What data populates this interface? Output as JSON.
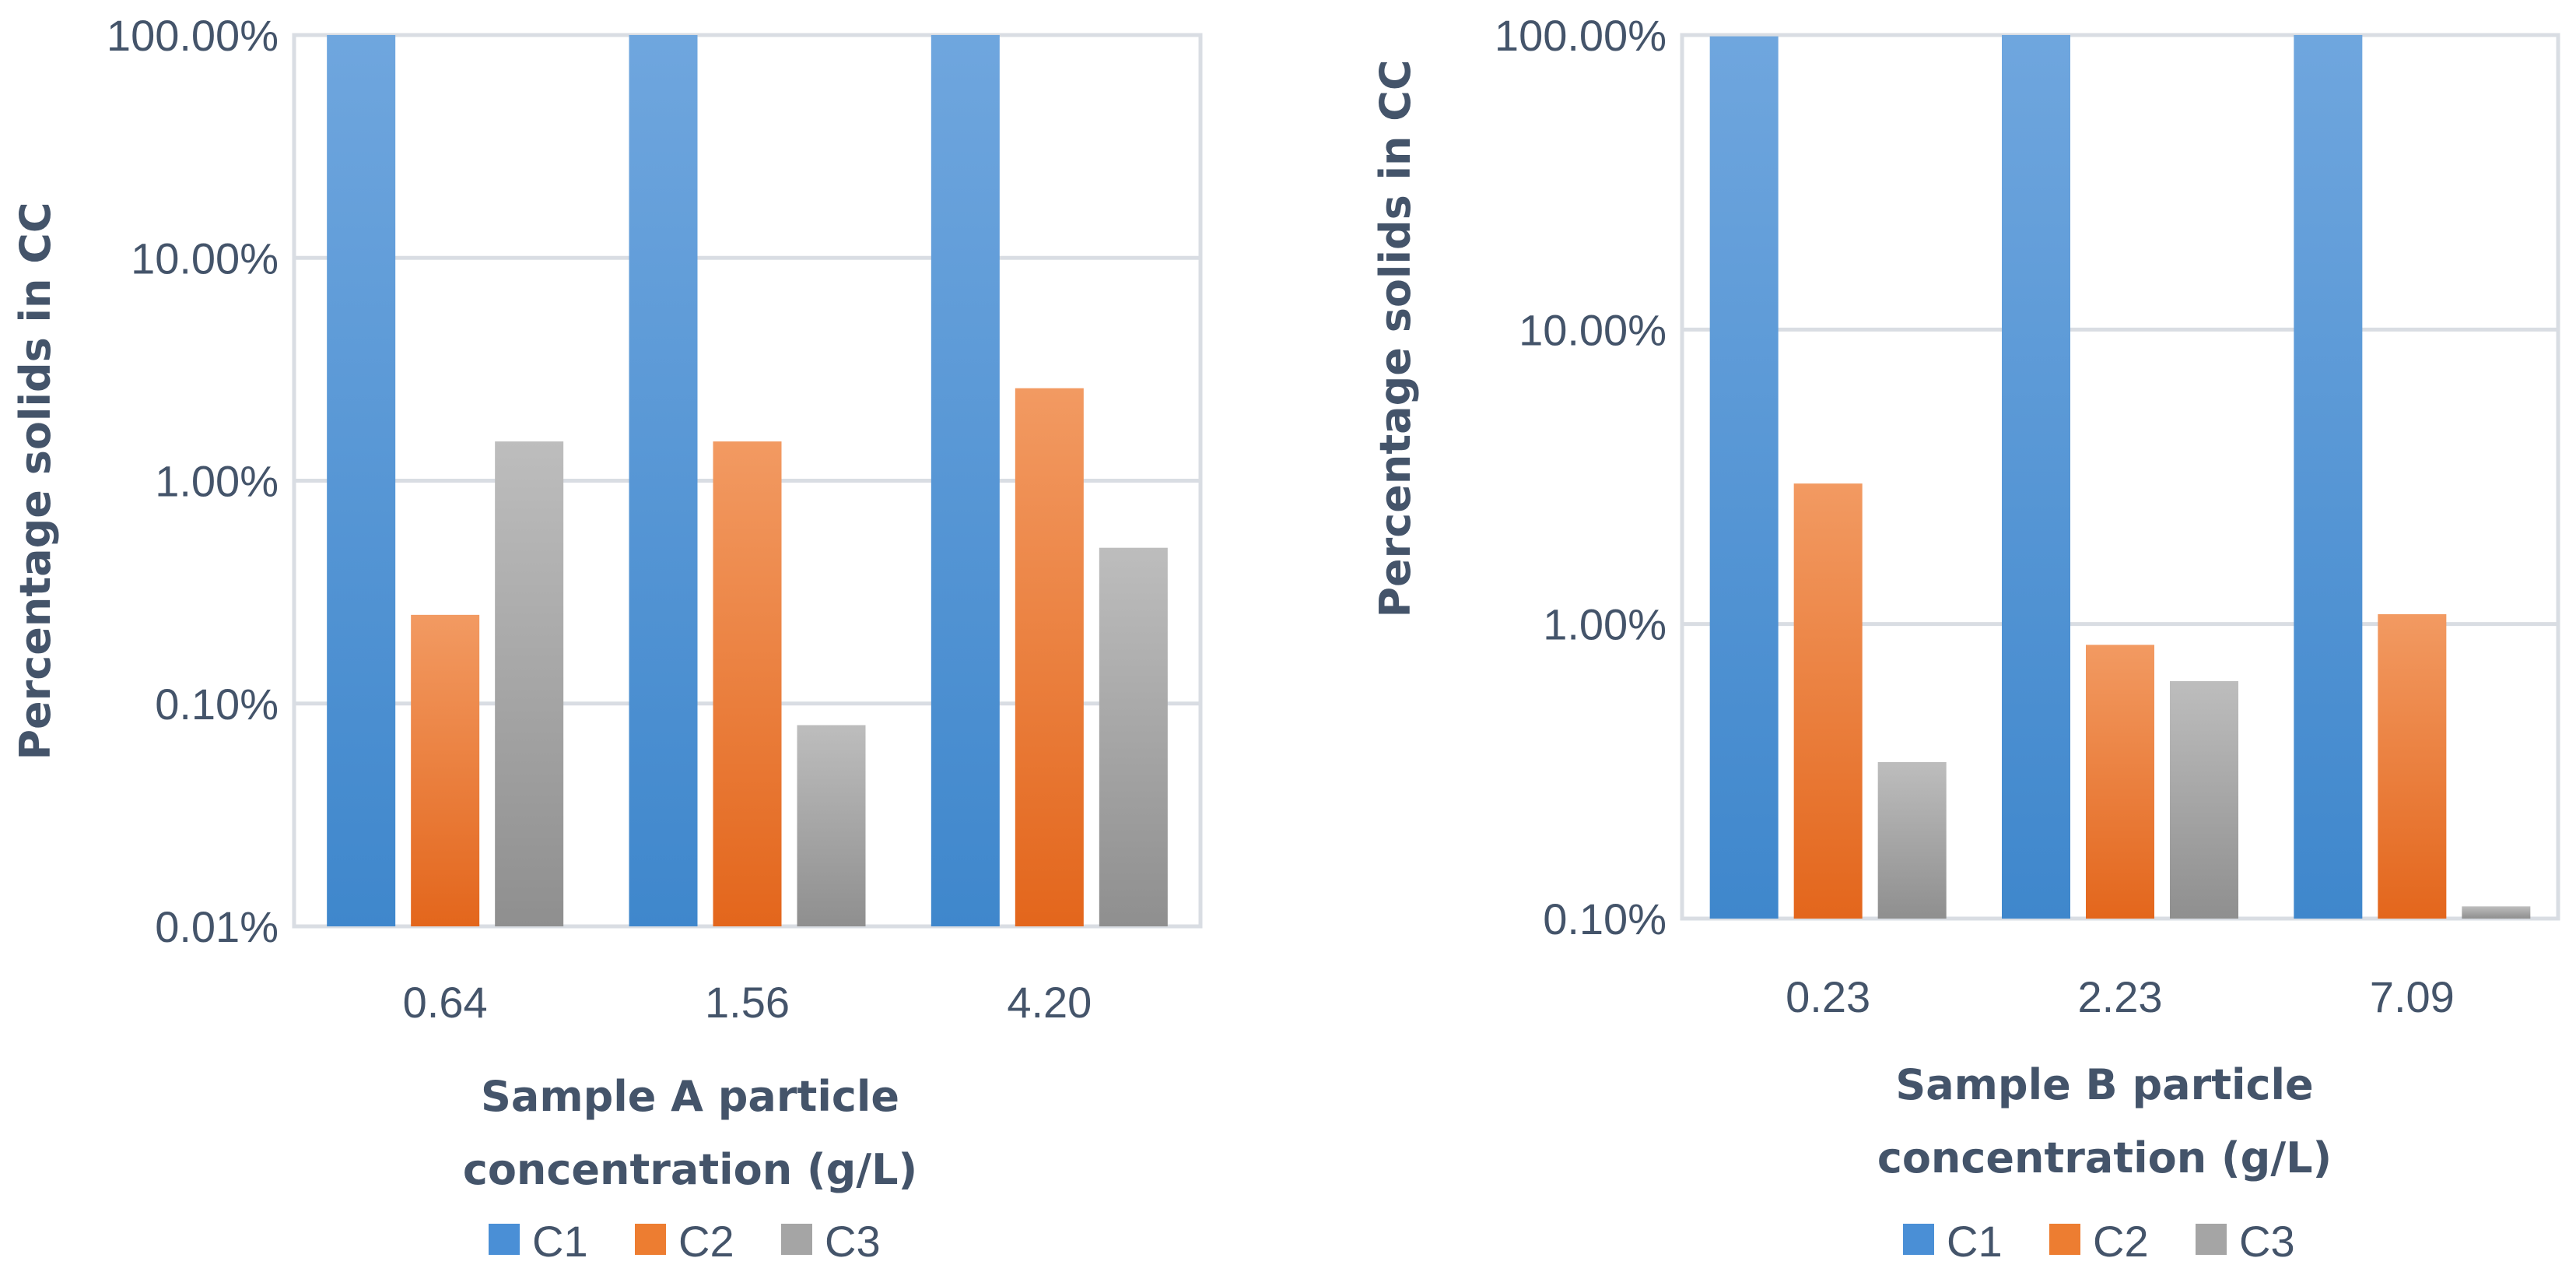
{
  "chart_data": [
    {
      "type": "bar",
      "scale": "log",
      "categories": [
        "0.64",
        "1.56",
        "4.20"
      ],
      "series": [
        {
          "name": "C1",
          "values": [
            100.0,
            100.0,
            100.0
          ]
        },
        {
          "name": "C2",
          "values": [
            0.25,
            1.5,
            2.6
          ]
        },
        {
          "name": "C3",
          "values": [
            1.5,
            0.08,
            0.5
          ]
        }
      ],
      "yticks": [
        "0.01%",
        "0.10%",
        "1.00%",
        "10.00%",
        "100.00%"
      ],
      "ylim": [
        0.01,
        100
      ],
      "ylabel": "Percentage solids in CC",
      "xlabel_line1": "Sample A particle",
      "xlabel_line2": "concentration (g/L)",
      "grid": true,
      "legend": "bottom"
    },
    {
      "type": "bar",
      "scale": "log",
      "categories": [
        "0.23",
        "2.23",
        "7.09"
      ],
      "series": [
        {
          "name": "C1",
          "values": [
            99.0,
            100.0,
            100.0
          ]
        },
        {
          "name": "C2",
          "values": [
            3.0,
            0.85,
            1.08
          ]
        },
        {
          "name": "C3",
          "values": [
            0.34,
            0.64,
            0.11
          ]
        }
      ],
      "yticks": [
        "0.10%",
        "1.00%",
        "10.00%",
        "100.00%"
      ],
      "ylim": [
        0.1,
        100
      ],
      "ylabel": "Percentage solids in CC",
      "xlabel_line1": "Sample B particle",
      "xlabel_line2": "concentration (g/L)",
      "grid": true,
      "legend": "bottom"
    }
  ],
  "colors": {
    "C1": "#4a8fd6",
    "C2": "#ed7d31",
    "C3": "#a5a5a5",
    "text": "#44546a",
    "grid": "#d9dde3"
  }
}
